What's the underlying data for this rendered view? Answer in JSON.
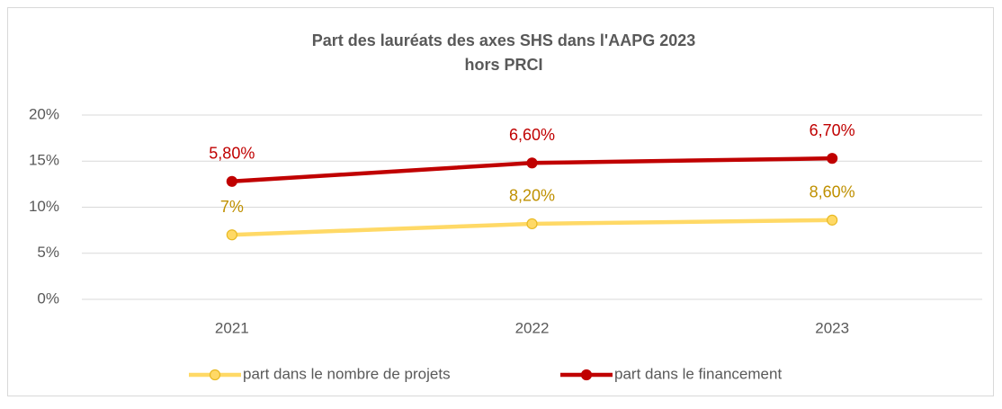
{
  "chart_data": {
    "type": "line",
    "stacked": true,
    "title": [
      "Part des lauréats des axes SHS dans l'AAPG 2023",
      "hors PRCI"
    ],
    "categories": [
      "2021",
      "2022",
      "2023"
    ],
    "series": [
      {
        "name": "part dans le nombre de projets",
        "color": "#FFD966",
        "marker_edge": "#E8B923",
        "label_color": "#BF9000",
        "values": [
          7,
          8.2,
          8.6
        ],
        "value_labels": [
          "7%",
          "8,20%",
          "8,60%"
        ]
      },
      {
        "name": "part dans le financement",
        "color": "#C00000",
        "marker_edge": "#C00000",
        "label_color": "#C00000",
        "values": [
          5.8,
          6.6,
          6.7
        ],
        "value_labels": [
          "5,80%",
          "6,60%",
          "6,70%"
        ]
      }
    ],
    "ylim": [
      0,
      20
    ],
    "yticks": [
      {
        "value": 0,
        "label": "0%"
      },
      {
        "value": 5,
        "label": "5%"
      },
      {
        "value": 10,
        "label": "10%"
      },
      {
        "value": 15,
        "label": "15%"
      },
      {
        "value": 20,
        "label": "20%"
      }
    ],
    "grid": true,
    "legend": "bottom"
  }
}
